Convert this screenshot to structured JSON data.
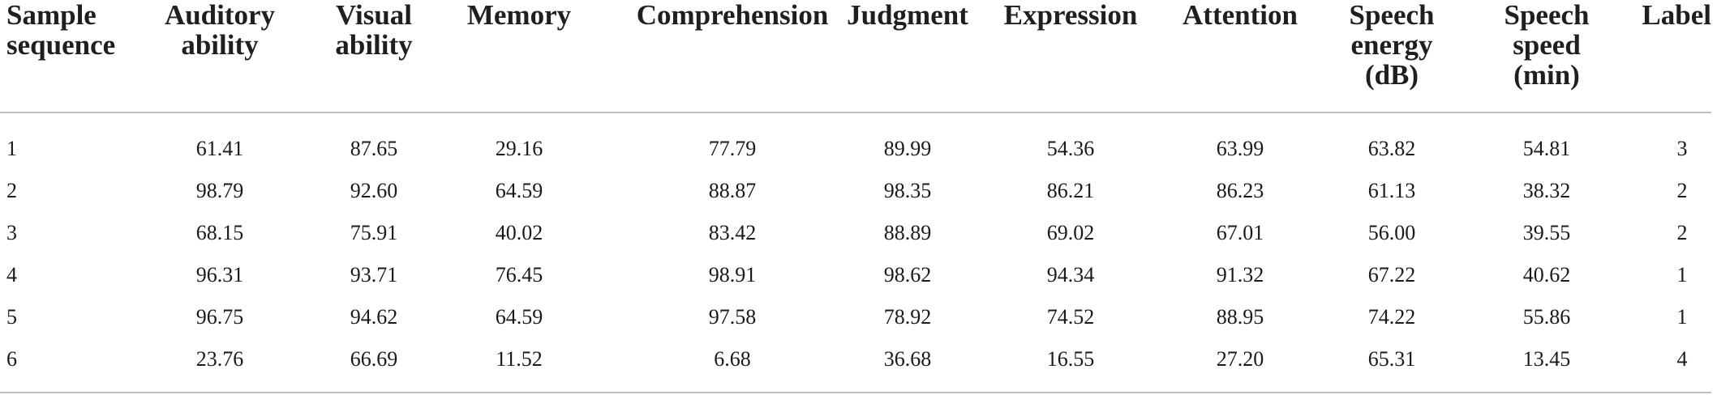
{
  "table": {
    "headers": [
      "Sample\nsequence",
      "Auditory\nability",
      "Visual\nability",
      "Memory",
      "Comprehension",
      "Judgment",
      "Expression",
      "Attention",
      "Speech\nenergy\n(dB)",
      "Speech\nspeed\n(min)",
      "Label"
    ],
    "rows": [
      [
        "1",
        "61.41",
        "87.65",
        "29.16",
        "77.79",
        "89.99",
        "54.36",
        "63.99",
        "63.82",
        "54.81",
        "3"
      ],
      [
        "2",
        "98.79",
        "92.60",
        "64.59",
        "88.87",
        "98.35",
        "86.21",
        "86.23",
        "61.13",
        "38.32",
        "2"
      ],
      [
        "3",
        "68.15",
        "75.91",
        "40.02",
        "83.42",
        "88.89",
        "69.02",
        "67.01",
        "56.00",
        "39.55",
        "2"
      ],
      [
        "4",
        "96.31",
        "93.71",
        "76.45",
        "98.91",
        "98.62",
        "94.34",
        "91.32",
        "67.22",
        "40.62",
        "1"
      ],
      [
        "5",
        "96.75",
        "94.62",
        "64.59",
        "97.58",
        "78.92",
        "74.52",
        "88.95",
        "74.22",
        "55.86",
        "1"
      ],
      [
        "6",
        "23.76",
        "66.69",
        "11.52",
        "6.68",
        "36.68",
        "16.55",
        "27.20",
        "65.31",
        "13.45",
        "4"
      ]
    ]
  }
}
